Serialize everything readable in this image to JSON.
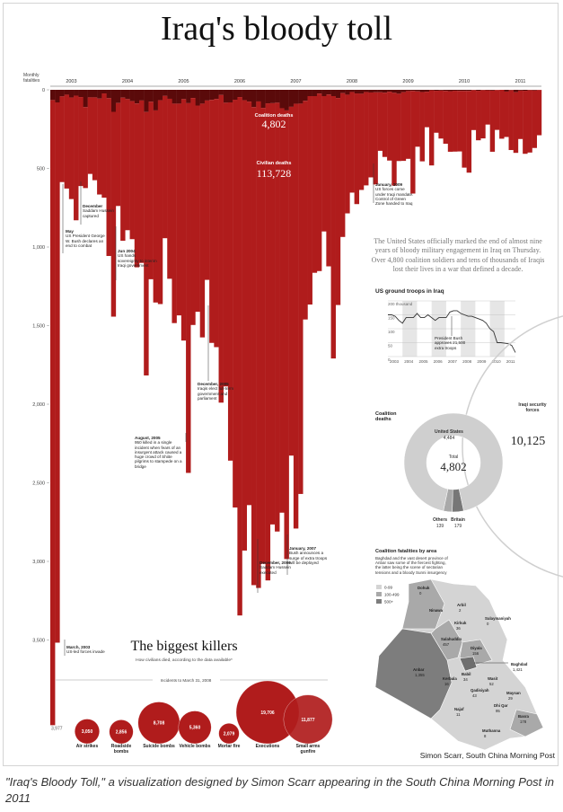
{
  "title": "Iraq's bloody toll",
  "intro": "The United States officially marked the end of almost nine years of bloody military engagement in Iraq on Thursday. Over 4,800 coalition soldiers and tens of thousands of Iraqis lost their lives in a war that defined a decade.",
  "credit": "Simon Scarr, South China Morning Post",
  "caption": "\"Iraq's Bloody Toll,\" a visualization designed by Simon Scarr appearing in the South China Morning Post in 2011",
  "chart_data": [
    {
      "type": "bar",
      "y_label": "Monthly fatalities",
      "stacked": true,
      "inverted": true,
      "categories": [
        null,
        null,
        null,
        null,
        "2003",
        null,
        null,
        null,
        null,
        null,
        null,
        null,
        null,
        null,
        null,
        null,
        "2004",
        null,
        null,
        null,
        null,
        null,
        null,
        null,
        null,
        null,
        null,
        null,
        "2005",
        null,
        null,
        null,
        null,
        null,
        null,
        null,
        null,
        null,
        null,
        null,
        "2006",
        null,
        null,
        null,
        null,
        null,
        null,
        null,
        null,
        null,
        null,
        null,
        "2007",
        null,
        null,
        null,
        null,
        null,
        null,
        null,
        null,
        null,
        null,
        null,
        "2008",
        null,
        null,
        null,
        null,
        null,
        null,
        null,
        null,
        null,
        null,
        null,
        "2009",
        null,
        null,
        null,
        null,
        null,
        null,
        null,
        null,
        null,
        null,
        null,
        "2010",
        null,
        null,
        null,
        null,
        null,
        null,
        null,
        null,
        null,
        null,
        null,
        "2011",
        null,
        null,
        null,
        null
      ],
      "series": [
        {
          "name": "Coalition deaths",
          "total_label": "4,802",
          "color": "#5a0a0a",
          "values": [
            65,
            80,
            42,
            31,
            49,
            37,
            46,
            110,
            48,
            48,
            56,
            23,
            53,
            140,
            84,
            50,
            59,
            72,
            87,
            68,
            141,
            76,
            131,
            66,
            39,
            57,
            88,
            88,
            59,
            85,
            52,
            100,
            88,
            68,
            64,
            58,
            33,
            82,
            80,
            63,
            46,
            66,
            75,
            110,
            74,
            115,
            86,
            85,
            82,
            117,
            131,
            108,
            89,
            88,
            70,
            40,
            40,
            24,
            40,
            30,
            40,
            52,
            21,
            31,
            14,
            23,
            25,
            14,
            17,
            16,
            16,
            18,
            12,
            19,
            25,
            15,
            8,
            7,
            10,
            14,
            12,
            3,
            6,
            5,
            7,
            9,
            6,
            7,
            7,
            7,
            2,
            6,
            2,
            3,
            5,
            1,
            0,
            11,
            2,
            15,
            5,
            6,
            2,
            4,
            1
          ]
        },
        {
          "name": "Civilian deaths",
          "total_label": "113,728",
          "color": "#b01c1c",
          "values": [
            3977,
            3437,
            545,
            597,
            646,
            793,
            566,
            515,
            487,
            527,
            610,
            663,
            1004,
            1303,
            655,
            910,
            834,
            878,
            1042,
            1033,
            1676,
            1129,
            1222,
            1297,
            905,
            1145,
            1396,
            1347,
            1536,
            2352,
            1444,
            1312,
            1487,
            1141,
            1546,
            1579,
            1957,
            1805,
            2279,
            2594,
            3298,
            2865,
            2567,
            3041,
            3095,
            2900,
            3035,
            2680,
            2728,
            2573,
            2854,
            2219,
            2702,
            2483,
            1391,
            1326,
            1124,
            1129,
            861,
            1093,
            1669,
            1317,
            915,
            755,
            640,
            704,
            612,
            594,
            540,
            586,
            372,
            409,
            438,
            590,
            428,
            437,
            431,
            653,
            352,
            441,
            226,
            478,
            267,
            305,
            336,
            385,
            387,
            385,
            488,
            520,
            254,
            315,
            307,
            218,
            389,
            254,
            311,
            289,
            381,
            386,
            308,
            401,
            397,
            366,
            288
          ],
          "value_labels": [
            "3,977",
            null,
            null,
            null,
            null,
            null,
            null,
            null,
            null,
            null,
            null,
            null,
            null,
            null,
            null,
            null,
            null,
            null,
            null,
            null,
            null,
            null,
            null,
            null,
            null,
            null,
            null,
            null,
            null,
            null,
            null,
            null,
            null,
            null,
            null,
            null,
            null,
            null,
            null,
            null,
            null,
            null,
            null,
            null,
            null,
            null,
            null,
            null,
            null,
            null,
            null,
            null,
            null,
            null,
            null,
            null,
            null,
            null,
            null,
            null,
            null,
            null,
            null,
            null,
            null,
            null,
            null,
            null,
            null,
            null,
            null,
            null,
            null,
            null,
            null,
            null,
            null,
            null,
            null,
            null,
            null,
            null,
            null,
            null,
            null,
            null,
            null,
            null,
            null,
            null,
            null,
            null,
            null,
            null,
            null,
            null,
            null,
            null,
            null,
            null,
            null,
            null,
            null,
            null,
            null
          ]
        }
      ],
      "ylim": [
        0,
        4000
      ],
      "yticks": [
        0,
        500,
        {
          "value": 1000,
          "label": "1,000"
        },
        {
          "value": 1500,
          "label": "1,500"
        },
        {
          "value": 2000,
          "label": "2,000"
        },
        {
          "value": 2500,
          "label": "2,500"
        },
        {
          "value": 3000,
          "label": "3,000"
        },
        {
          "value": 3500,
          "label": "3,500"
        }
      ],
      "grid": false,
      "annotations": [
        {
          "date": "March, 2003",
          "text": "US-led forces invade"
        },
        {
          "date": "May",
          "text": "US President George W. Bush declares an end to combat"
        },
        {
          "date": "December",
          "text": "Saddam Hussein captured"
        },
        {
          "date": "Jun 2004",
          "text": "US hands sovereignty to interim Iraqi government"
        },
        {
          "date": "August, 2005",
          "text": "950 killed in a single incident when fears of an insurgent attack caused a huge crowd of Shiite pilgrims to stampede on a bridge"
        },
        {
          "date": "December, 2005",
          "text": "Iraqis elect full-term government and parliament"
        },
        {
          "date": "December, 2006",
          "text": "Saddam Hussein executed"
        },
        {
          "date": "January, 2007",
          "text": "Bush announces a surge of extra troops will be deployed"
        },
        {
          "date": "January, 2009",
          "text": "US forces come under Iraqi mandate. Control of Green Zone handed to Iraq"
        }
      ]
    },
    {
      "type": "line",
      "title": "US ground troops in Iraq",
      "annotation": "President Bush approves 21,500 extra troops",
      "color": "#333333",
      "categories": [
        "2003",
        null,
        null,
        null,
        "2004",
        null,
        null,
        null,
        "2005",
        null,
        null,
        null,
        "2006",
        null,
        null,
        null,
        "2007",
        null,
        null,
        null,
        "2008",
        null,
        null,
        null,
        "2009",
        null,
        null,
        null,
        "2010",
        null,
        null,
        null,
        "2011",
        null,
        null,
        null
      ],
      "values": [
        150,
        150,
        145,
        130,
        120,
        140,
        140,
        140,
        155,
        140,
        140,
        150,
        140,
        130,
        140,
        140,
        140,
        160,
        165,
        165,
        155,
        150,
        145,
        145,
        140,
        135,
        130,
        120,
        100,
        90,
        50,
        50,
        48,
        46,
        40,
        15
      ],
      "ylim": [
        0,
        200
      ],
      "yticks": [
        0,
        50,
        100,
        150,
        {
          "value": 200,
          "label": "200 thousand"
        }
      ],
      "grid": true
    },
    {
      "type": "pie",
      "title": "Coalition deaths",
      "categories": [
        "United States",
        "Britain",
        "Others"
      ],
      "values": [
        4484,
        179,
        139
      ],
      "value_labels": [
        "4,484",
        "179",
        "139"
      ],
      "colors": [
        "#cfcfcf",
        "#777777",
        "#a9a9a9"
      ],
      "total_title": "Total",
      "total_label": "4,802",
      "extra_name": "Iraqi security forces",
      "extra_label": "10,125"
    },
    {
      "type": "bubble",
      "title": "The biggest killers",
      "subtitle": "How civilians died, according to the data available*",
      "period": "Incidents to March 31, 2008",
      "color": "#b01c1c",
      "categories": [
        "Air strikes",
        "Roadside bombs",
        "Suicide bombs",
        "Vehicle bombs",
        "Mortar fire",
        "Executions",
        "Small arms gunfire"
      ],
      "values": [
        3050,
        2856,
        8708,
        5360,
        2079,
        19706,
        11877
      ],
      "value_labels": [
        "3,050",
        "2,856",
        "8,708",
        "5,360",
        "2,079",
        "19,706",
        "11,877"
      ]
    }
  ],
  "map": {
    "title": "Coalition fatalities by area",
    "text": "Baghdad and the vast desert province of Anbar saw some of the fiercest fighting, the latter being the scene of sectarian tensions and a bloody Sunni insurgency",
    "legend": [
      "0-99",
      "100-499",
      "500+"
    ],
    "areas": [
      {
        "name": "Dohuk",
        "value": "0"
      },
      {
        "name": "Ninawa"
      },
      {
        "name": "Arbil",
        "value": "2"
      },
      {
        "name": "Sulaymaniyah",
        "value": "0"
      },
      {
        "name": "Kirkuk",
        "value": "36"
      },
      {
        "name": "Salahuddin",
        "value": "457"
      },
      {
        "name": "Diyala",
        "value": "156"
      },
      {
        "name": "Anbar",
        "value": "1,355"
      },
      {
        "name": "Baghdad",
        "value": "1,421"
      },
      {
        "name": "Babil",
        "value": "34"
      },
      {
        "name": "Kerbala",
        "value": "16"
      },
      {
        "name": "Wasit",
        "value": "52"
      },
      {
        "name": "Qadisiyah",
        "value": "43"
      },
      {
        "name": "Najaf",
        "value": "11"
      },
      {
        "name": "Maysan",
        "value": "29"
      },
      {
        "name": "Dhi Qar",
        "value": "95"
      },
      {
        "name": "Muthanna",
        "value": "8"
      },
      {
        "name": "Basra",
        "value": "178"
      }
    ]
  }
}
